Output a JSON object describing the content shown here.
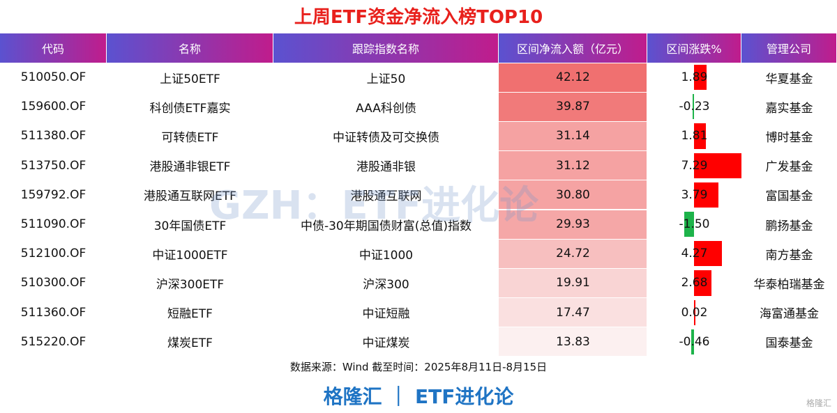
{
  "title": "上周ETF资金净流入榜TOP10",
  "table": {
    "header": [
      "代码",
      "名称",
      "跟踪指数名称",
      "区间净流入额（亿元）",
      "区间涨跌%",
      "管理公司"
    ],
    "rows": [
      [
        "510050.OF",
        "上证50ETF",
        "上证50",
        "42.12",
        "1.89",
        "华夏基金"
      ],
      [
        "159600.OF",
        "科创债ETF嘉实",
        "AAA科创债",
        "39.87",
        "-0.23",
        "嘉实基金"
      ],
      [
        "511380.OF",
        "可转债ETF",
        "中证转债及可交换债",
        "31.14",
        "1.81",
        "博时基金"
      ],
      [
        "513750.OF",
        "港股通非银ETF",
        "港股通非银",
        "31.12",
        "7.29",
        "广发基金"
      ],
      [
        "159792.OF",
        "港股通互联网ETF",
        "港股通互联网",
        "30.80",
        "3.79",
        "富国基金"
      ],
      [
        "511090.OF",
        "30年国债ETF",
        "中债-30年期国债财富(总值)指数",
        "29.93",
        "-1.50",
        "鹏扬基金"
      ],
      [
        "512100.OF",
        "中证1000ETF",
        "中证1000",
        "24.72",
        "4.27",
        "南方基金"
      ],
      [
        "510300.OF",
        "沪深300ETF",
        "沪深300",
        "19.91",
        "2.68",
        "华泰柏瑞基金"
      ],
      [
        "511360.OF",
        "短融ETF",
        "中证短融",
        "17.47",
        "0.02",
        "海富通基金"
      ],
      [
        "515220.OF",
        "煤炭ETF",
        "中证煤炭",
        "13.83",
        "-0.46",
        "国泰基金"
      ]
    ]
  },
  "source": "数据来源：Wind 截至时间：2025年8月11日-8月15日",
  "footer": "格隆汇 ｜ ETF进化论",
  "watermark": "GZH：ETF进化论",
  "corner_logo": "格隆汇"
}
